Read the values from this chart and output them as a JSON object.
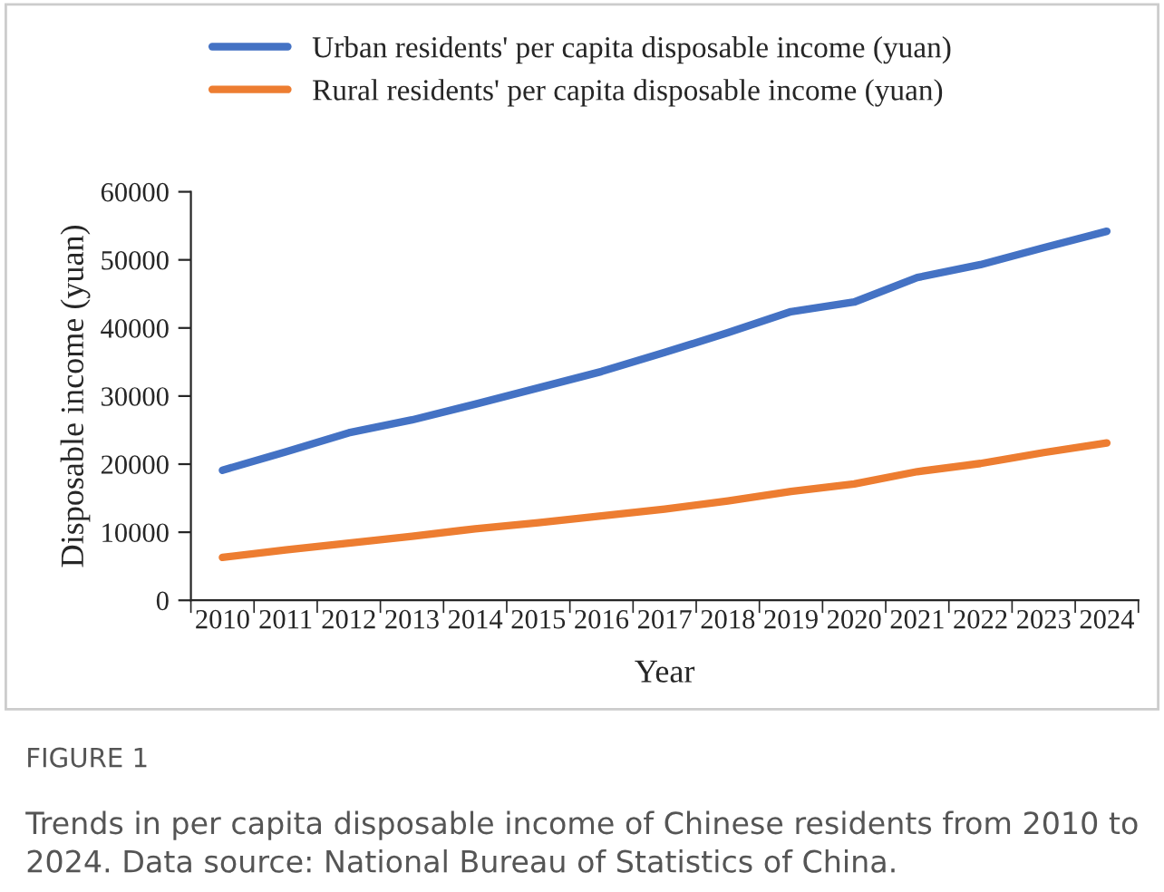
{
  "chart_data": {
    "type": "line",
    "xlabel": "Year",
    "ylabel": "Disposable income (yuan)",
    "categories": [
      "2010",
      "2011",
      "2012",
      "2013",
      "2014",
      "2015",
      "2016",
      "2017",
      "2018",
      "2019",
      "2020",
      "2021",
      "2022",
      "2023",
      "2024"
    ],
    "series": [
      {
        "name": "Urban residents' per capita disposable income (yuan)",
        "color": "#4472c4",
        "values": [
          19100,
          21800,
          24600,
          26500,
          28800,
          31200,
          33600,
          36400,
          39300,
          42400,
          43800,
          47400,
          49300,
          51800,
          54200
        ]
      },
      {
        "name": "Rural residents' per capita disposable income (yuan)",
        "color": "#ed7d31",
        "values": [
          6300,
          7400,
          8400,
          9400,
          10500,
          11400,
          12400,
          13400,
          14600,
          16000,
          17100,
          18900,
          20100,
          21700,
          23100
        ]
      }
    ],
    "ylim": [
      0,
      60000
    ],
    "yticks": [
      0,
      10000,
      20000,
      30000,
      40000,
      50000,
      60000
    ],
    "grid": false,
    "legend": "top",
    "line_style": "solid",
    "marker": "none",
    "annotations": [
      "FIGURE 1",
      "Trends in per capita disposable income of Chinese residents from 2010 to 2024. Data source: National Bureau of Statistics of China."
    ]
  }
}
